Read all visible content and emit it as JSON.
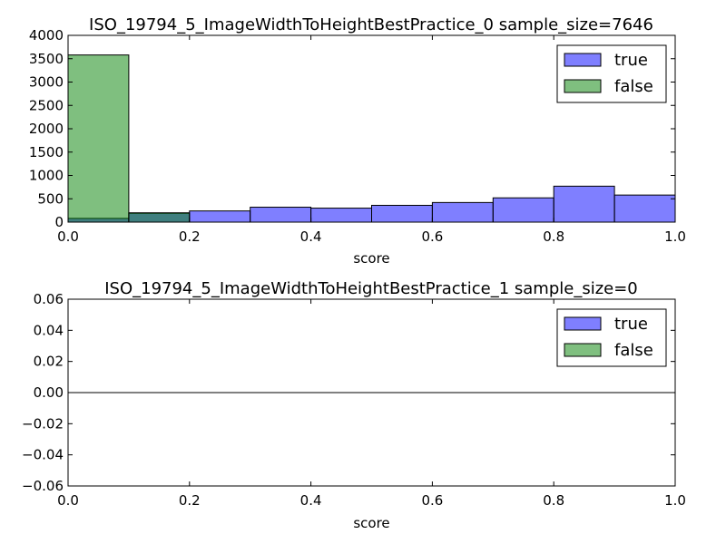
{
  "colors": {
    "true_fill": "#0000ff",
    "false_fill": "#008000",
    "bar_opacity": 0.5,
    "edge": "#000000"
  },
  "chart_data": [
    {
      "type": "bar",
      "title": "ISO_19794_5_ImageWidthToHeightBestPractice_0 sample_size=7646",
      "xlabel": "score",
      "ylabel": "",
      "xlim": [
        0.0,
        1.0
      ],
      "ylim": [
        0,
        4000
      ],
      "xticks": [
        "0.0",
        "0.2",
        "0.4",
        "0.6",
        "0.8",
        "1.0"
      ],
      "yticks": [
        "0",
        "500",
        "1000",
        "1500",
        "2000",
        "2500",
        "3000",
        "3500",
        "4000"
      ],
      "bin_edges": [
        0.0,
        0.1,
        0.2,
        0.3,
        0.4,
        0.5,
        0.6,
        0.7,
        0.8,
        0.9,
        1.0
      ],
      "series": [
        {
          "name": "true",
          "color_key": "true_fill",
          "values": [
            80,
            190,
            240,
            320,
            300,
            360,
            420,
            520,
            770,
            580
          ]
        },
        {
          "name": "false",
          "color_key": "false_fill",
          "values": [
            3580,
            200,
            0,
            0,
            0,
            0,
            0,
            0,
            0,
            0
          ]
        }
      ],
      "legend": {
        "placement": "top-right",
        "entries": [
          "true",
          "false"
        ]
      },
      "grid": false
    },
    {
      "type": "bar",
      "title": "ISO_19794_5_ImageWidthToHeightBestPractice_1 sample_size=0",
      "xlabel": "score",
      "ylabel": "",
      "xlim": [
        0.0,
        1.0
      ],
      "ylim": [
        -0.06,
        0.06
      ],
      "xticks": [
        "0.0",
        "0.2",
        "0.4",
        "0.6",
        "0.8",
        "1.0"
      ],
      "yticks": [
        "−0.06",
        "−0.04",
        "−0.02",
        "0.00",
        "0.02",
        "0.04",
        "0.06"
      ],
      "bin_edges": [
        0.0,
        0.1,
        0.2,
        0.3,
        0.4,
        0.5,
        0.6,
        0.7,
        0.8,
        0.9,
        1.0
      ],
      "series": [
        {
          "name": "true",
          "color_key": "true_fill",
          "values": [
            0,
            0,
            0,
            0,
            0,
            0,
            0,
            0,
            0,
            0
          ]
        },
        {
          "name": "false",
          "color_key": "false_fill",
          "values": [
            0,
            0,
            0,
            0,
            0,
            0,
            0,
            0,
            0,
            0
          ]
        }
      ],
      "legend": {
        "placement": "top-right",
        "entries": [
          "true",
          "false"
        ]
      },
      "grid": false
    }
  ]
}
